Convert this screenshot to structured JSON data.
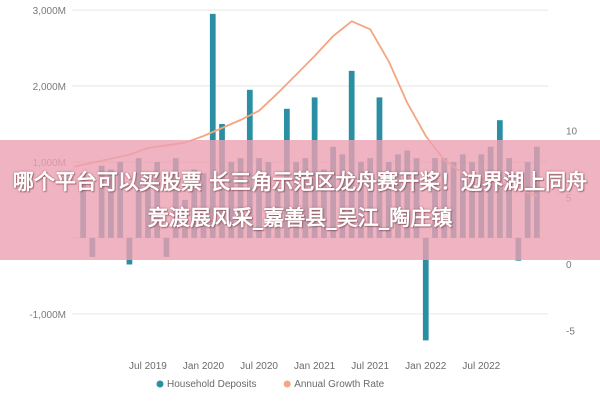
{
  "banner": {
    "text": "哪个平台可以买股票 长三角示范区龙舟赛开桨！边界湖上同舟竞渡展风采_嘉善县_吴江_陶庄镇"
  },
  "chart_data": {
    "type": "bar",
    "title": "",
    "xlabel": "",
    "ylabel": "",
    "y_left": {
      "ticks": [
        -1000,
        0,
        1000,
        2000,
        3000
      ],
      "tick_labels": [
        "-1,000M",
        "",
        "1,000M",
        "2,000M",
        "3,000M"
      ],
      "range": [
        -1450,
        3080
      ]
    },
    "y_right": {
      "ticks": [
        -5,
        0,
        5,
        10
      ],
      "tick_labels": [
        "-5",
        "0",
        "5",
        "10"
      ],
      "range": [
        -6.3,
        19.5
      ]
    },
    "x_tick_labels": [
      "Jul 2019",
      "Jan 2020",
      "Jul 2020",
      "Jan 2021",
      "Jul 2021",
      "Jan 2022",
      "Jul 2022"
    ],
    "x_tick_month_index": [
      0,
      6,
      12,
      18,
      24,
      30,
      36
    ],
    "month_range": [
      -8.2,
      43.2
    ],
    "grid": true,
    "legend_position": "bottom",
    "series": [
      {
        "name": "Household Deposits",
        "type": "bar",
        "axis": "left",
        "color": "#2a8fa3",
        "month_index": [
          -7,
          -6,
          -5,
          -4,
          -3,
          -2,
          -1,
          0,
          1,
          2,
          3,
          4,
          5,
          6,
          7,
          8,
          9,
          10,
          11,
          12,
          13,
          14,
          15,
          16,
          17,
          18,
          19,
          20,
          21,
          22,
          23,
          24,
          25,
          26,
          27,
          28,
          29,
          30,
          31,
          32,
          33,
          34,
          35,
          36,
          37,
          38,
          39,
          40,
          41,
          42
        ],
        "values": [
          850,
          -250,
          950,
          900,
          1000,
          -350,
          1050,
          850,
          1000,
          -250,
          1050,
          500,
          900,
          850,
          2950,
          1500,
          1000,
          1050,
          1950,
          1050,
          1000,
          650,
          1700,
          1000,
          1050,
          1850,
          900,
          1200,
          1100,
          2200,
          1000,
          1050,
          1850,
          1000,
          1100,
          1150,
          1050,
          -1350,
          1050,
          1050,
          1000,
          1100,
          1000,
          1100,
          1200,
          1550,
          1050,
          -300,
          1000,
          1200
        ]
      },
      {
        "name": "Annual Growth Rate",
        "type": "line",
        "axis": "right",
        "color": "#f4a582",
        "month_index": [
          -8,
          -6,
          -4,
          -2,
          0,
          2,
          4,
          6,
          8,
          10,
          12,
          14,
          16,
          18,
          20,
          22,
          24,
          26,
          28,
          30,
          32,
          34,
          36,
          38,
          40,
          42
        ],
        "values": [
          7.3,
          7.6,
          7.9,
          8.2,
          8.7,
          8.9,
          9.1,
          9.6,
          10.2,
          10.8,
          11.5,
          12.8,
          14.2,
          15.6,
          17.1,
          18.2,
          17.6,
          15.2,
          12.1,
          9.6,
          7.8,
          6.8,
          6.6,
          6.1,
          5.6,
          5.1
        ]
      }
    ]
  }
}
